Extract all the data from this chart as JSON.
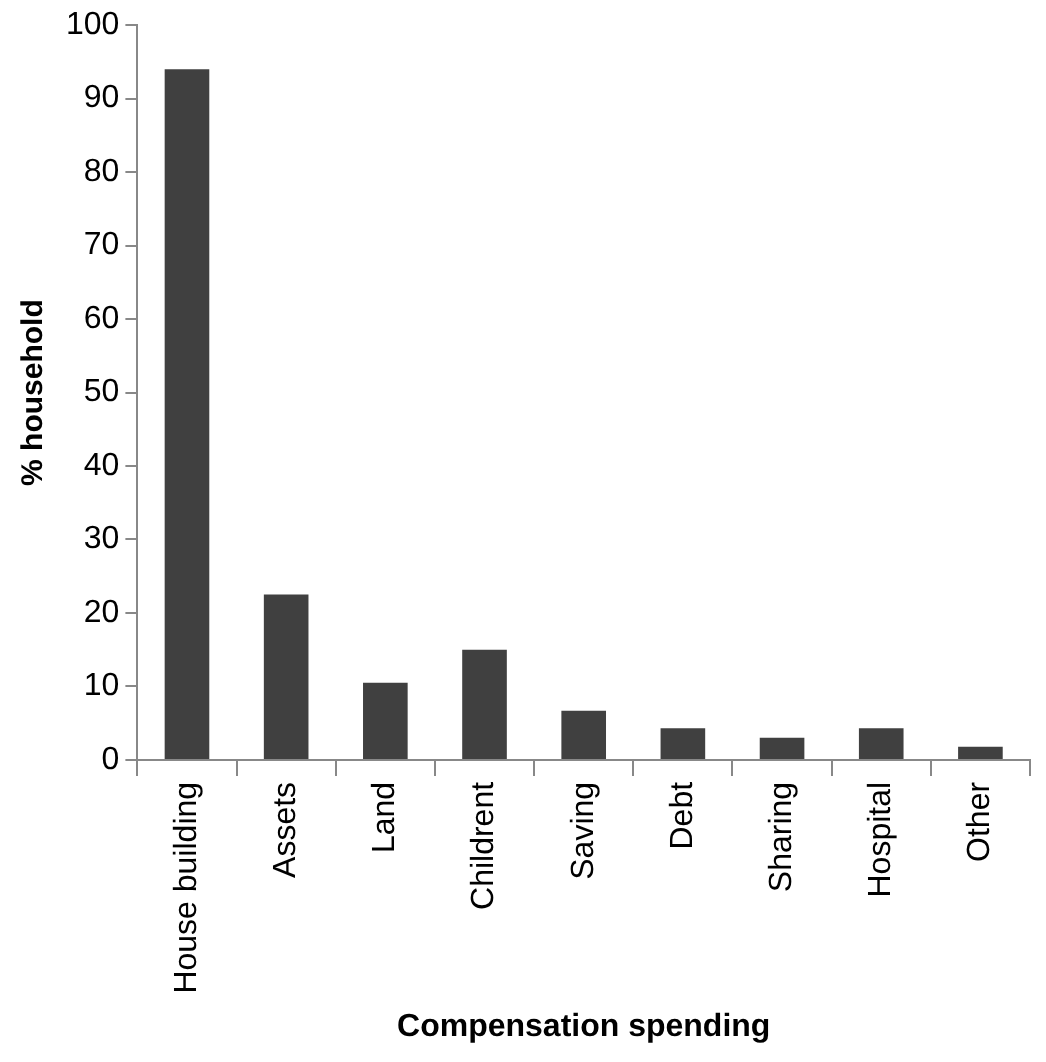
{
  "chart_data": {
    "type": "bar",
    "xlabel": "Compensation spending",
    "ylabel": "% household",
    "categories": [
      "House building",
      "Assets",
      "Land",
      "Childrent",
      "Saving",
      "Debt",
      "Sharing",
      "Hospital",
      "Other"
    ],
    "values": [
      94,
      22.5,
      10.5,
      15,
      6.7,
      4.3,
      3,
      4.3,
      1.8
    ],
    "color": "#404040",
    "ylim": [
      0,
      100
    ],
    "yticks": [
      0,
      10,
      20,
      30,
      40,
      50,
      60,
      70,
      80,
      90,
      100
    ],
    "grid": false,
    "legend": false
  }
}
